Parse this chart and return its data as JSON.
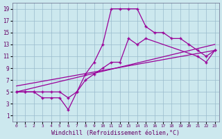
{
  "xlabel": "Windchill (Refroidissement éolien,°C)",
  "xlim": [
    -0.5,
    23.5
  ],
  "ylim": [
    0,
    20
  ],
  "xticks": [
    0,
    1,
    2,
    3,
    4,
    5,
    6,
    7,
    8,
    9,
    10,
    11,
    12,
    13,
    14,
    15,
    16,
    17,
    18,
    19,
    20,
    21,
    22,
    23
  ],
  "yticks": [
    1,
    3,
    5,
    7,
    9,
    11,
    13,
    15,
    17,
    19
  ],
  "background_color": "#cce8ee",
  "line_color": "#990099",
  "grid_color": "#99bbcc",
  "line1_x": [
    0,
    1,
    2,
    3,
    4,
    5,
    6,
    7,
    8,
    9,
    10,
    11,
    12,
    13,
    14,
    15,
    16,
    17,
    18,
    19,
    20,
    21,
    22,
    23
  ],
  "line1_y": [
    5,
    5,
    5,
    5,
    5,
    5,
    4,
    5,
    8,
    10,
    13,
    19,
    19,
    19,
    19,
    16,
    15,
    15,
    14,
    14,
    13,
    12,
    11,
    12
  ],
  "line2_x": [
    0,
    1,
    2,
    3,
    4,
    5,
    6,
    7,
    8,
    9,
    10,
    11,
    12,
    13,
    14,
    15,
    21,
    22,
    23
  ],
  "line2_y": [
    5,
    5,
    5,
    4,
    4,
    4,
    2,
    5,
    7,
    8,
    9,
    10,
    10,
    14,
    13,
    14,
    11,
    10,
    12
  ],
  "line3_x": [
    0,
    23
  ],
  "line3_y": [
    5,
    13
  ],
  "line4_x": [
    0,
    23
  ],
  "line4_y": [
    6,
    12
  ],
  "marker_style": "+",
  "xlabel_color": "#660066",
  "xlabel_fontsize": 6,
  "tick_fontsize": 5.5,
  "spine_color": "#666688"
}
